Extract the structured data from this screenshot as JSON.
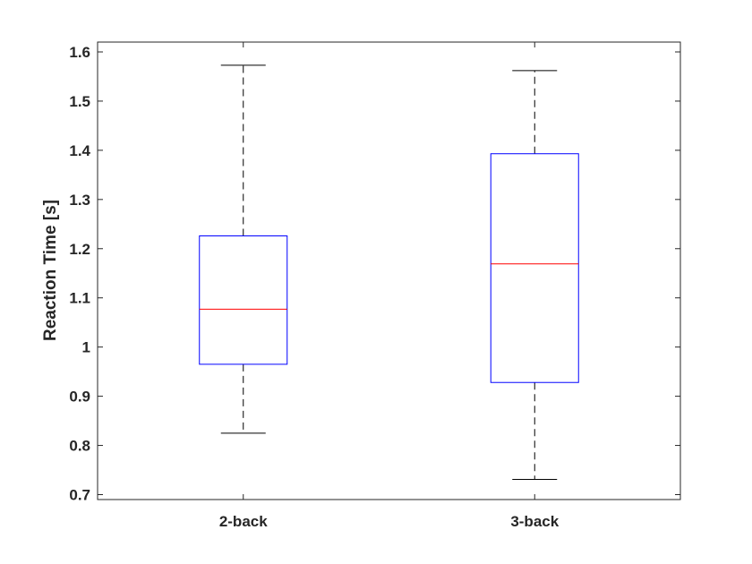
{
  "chart_data": {
    "type": "box",
    "title": "",
    "xlabel": "",
    "ylabel": "Reaction Time [s]",
    "ylim": [
      0.69,
      1.62
    ],
    "yticks": [
      "0.7",
      "0.8",
      "0.9",
      "1",
      "1.1",
      "1.2",
      "1.3",
      "1.4",
      "1.5",
      "1.6"
    ],
    "categories": [
      "2-back",
      "3-back"
    ],
    "boxes": [
      {
        "label": "2-back",
        "whisker_low": 0.825,
        "q1": 0.965,
        "median": 1.077,
        "q3": 1.226,
        "whisker_high": 1.573
      },
      {
        "label": "3-back",
        "whisker_low": 0.731,
        "q1": 0.928,
        "median": 1.169,
        "q3": 1.393,
        "whisker_high": 1.562
      }
    ],
    "grid": false,
    "colors": {
      "box": "#0000ff",
      "median": "#ff0000",
      "whisker": "#000000",
      "axis": "#262626"
    }
  }
}
